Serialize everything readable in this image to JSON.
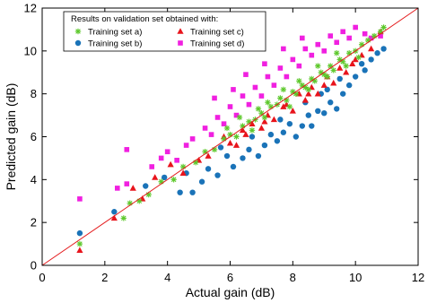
{
  "chart_data": {
    "type": "scatter",
    "xlabel": "Actual gain (dB)",
    "ylabel": "Predicted gain (dB)",
    "xlim": [
      0,
      12
    ],
    "ylim": [
      0,
      12
    ],
    "xticks": [
      "0",
      "2",
      "4",
      "6",
      "8",
      "10",
      "12"
    ],
    "yticks": [
      "0",
      "2",
      "4",
      "6",
      "8",
      "10",
      "12"
    ],
    "grid": false,
    "reference_line": {
      "from": [
        0,
        0
      ],
      "to": [
        12,
        12
      ],
      "color": "#e41a1c"
    },
    "legend": {
      "title": "Results on validation set obtained with:",
      "placement": "top-left",
      "entries": [
        {
          "label": "Training set a)",
          "marker": "asterisk",
          "color": "#5cc82a"
        },
        {
          "label": "Training set c)",
          "marker": "triangle",
          "color": "#e8141c"
        },
        {
          "label": "Training set b)",
          "marker": "circle",
          "color": "#1a73b8"
        },
        {
          "label": "Training set d)",
          "marker": "square",
          "color": "#f020e0"
        }
      ]
    },
    "series": [
      {
        "name": "Training set a)",
        "marker": "asterisk",
        "color": "#5cc82a",
        "points": [
          [
            1.2,
            1.0
          ],
          [
            2.6,
            2.2
          ],
          [
            2.8,
            2.9
          ],
          [
            3.1,
            3.0
          ],
          [
            3.4,
            3.3
          ],
          [
            3.8,
            3.9
          ],
          [
            4.2,
            4.0
          ],
          [
            4.5,
            4.6
          ],
          [
            4.9,
            4.8
          ],
          [
            5.2,
            5.3
          ],
          [
            5.5,
            5.4
          ],
          [
            5.8,
            5.9
          ],
          [
            6.0,
            6.1
          ],
          [
            6.2,
            6.0
          ],
          [
            6.4,
            6.5
          ],
          [
            6.6,
            6.7
          ],
          [
            6.8,
            6.8
          ],
          [
            7.0,
            7.1
          ],
          [
            7.1,
            6.9
          ],
          [
            7.3,
            7.4
          ],
          [
            7.5,
            7.5
          ],
          [
            7.6,
            7.8
          ],
          [
            7.8,
            7.7
          ],
          [
            8.0,
            8.1
          ],
          [
            8.1,
            8.0
          ],
          [
            8.3,
            8.4
          ],
          [
            8.4,
            8.3
          ],
          [
            8.6,
            8.7
          ],
          [
            8.7,
            8.6
          ],
          [
            8.9,
            9.0
          ],
          [
            9.0,
            8.9
          ],
          [
            9.2,
            9.3
          ],
          [
            9.3,
            9.1
          ],
          [
            9.5,
            9.6
          ],
          [
            9.6,
            9.5
          ],
          [
            9.8,
            9.9
          ],
          [
            10.0,
            10.0
          ],
          [
            10.2,
            10.3
          ],
          [
            10.4,
            10.5
          ],
          [
            10.6,
            10.7
          ],
          [
            10.8,
            10.9
          ],
          [
            10.9,
            11.1
          ],
          [
            7.2,
            7.6
          ],
          [
            7.7,
            8.2
          ],
          [
            8.2,
            8.6
          ],
          [
            8.8,
            9.3
          ],
          [
            9.4,
            9.9
          ],
          [
            6.9,
            7.3
          ],
          [
            6.3,
            6.9
          ],
          [
            5.9,
            6.4
          ],
          [
            8.5,
            8.2
          ],
          [
            9.1,
            8.8
          ],
          [
            9.7,
            9.3
          ],
          [
            10.1,
            9.7
          ],
          [
            7.9,
            7.4
          ],
          [
            6.7,
            6.3
          ]
        ]
      },
      {
        "name": "Training set b)",
        "marker": "circle",
        "color": "#1a73b8",
        "points": [
          [
            1.2,
            1.5
          ],
          [
            2.3,
            2.5
          ],
          [
            3.3,
            3.7
          ],
          [
            3.9,
            4.1
          ],
          [
            4.4,
            3.4
          ],
          [
            4.8,
            3.4
          ],
          [
            5.1,
            3.9
          ],
          [
            5.3,
            4.5
          ],
          [
            5.6,
            4.2
          ],
          [
            5.9,
            5.1
          ],
          [
            6.1,
            4.6
          ],
          [
            6.4,
            5.0
          ],
          [
            6.6,
            5.4
          ],
          [
            6.9,
            5.1
          ],
          [
            7.1,
            5.6
          ],
          [
            7.3,
            6.1
          ],
          [
            7.5,
            5.8
          ],
          [
            7.7,
            6.2
          ],
          [
            7.9,
            6.6
          ],
          [
            8.1,
            6.0
          ],
          [
            8.3,
            6.5
          ],
          [
            8.5,
            7.0
          ],
          [
            8.6,
            6.5
          ],
          [
            8.8,
            7.2
          ],
          [
            9.0,
            7.1
          ],
          [
            9.2,
            7.6
          ],
          [
            9.4,
            7.3
          ],
          [
            9.6,
            8.0
          ],
          [
            9.8,
            8.4
          ],
          [
            10.0,
            8.8
          ],
          [
            10.3,
            9.1
          ],
          [
            10.5,
            9.6
          ],
          [
            10.7,
            9.9
          ],
          [
            10.9,
            10.1
          ],
          [
            8.4,
            7.6
          ],
          [
            7.6,
            6.8
          ],
          [
            9.1,
            8.2
          ],
          [
            6.7,
            6.0
          ],
          [
            4.6,
            4.3
          ],
          [
            5.7,
            5.5
          ],
          [
            8.9,
            8.0
          ],
          [
            9.5,
            8.7
          ],
          [
            10.2,
            9.4
          ]
        ]
      },
      {
        "name": "Training set c)",
        "marker": "triangle",
        "color": "#e8141c",
        "points": [
          [
            1.2,
            0.7
          ],
          [
            2.3,
            2.2
          ],
          [
            2.9,
            3.6
          ],
          [
            3.2,
            3.1
          ],
          [
            3.6,
            4.1
          ],
          [
            4.1,
            4.7
          ],
          [
            4.5,
            4.3
          ],
          [
            5.0,
            4.9
          ],
          [
            5.3,
            5.1
          ],
          [
            5.8,
            6.0
          ],
          [
            6.2,
            5.6
          ],
          [
            6.4,
            6.3
          ],
          [
            6.7,
            6.6
          ],
          [
            7.0,
            6.4
          ],
          [
            7.2,
            7.0
          ],
          [
            7.4,
            6.8
          ],
          [
            7.7,
            7.4
          ],
          [
            8.0,
            7.2
          ],
          [
            8.2,
            8.0
          ],
          [
            8.4,
            7.7
          ],
          [
            8.6,
            8.3
          ],
          [
            8.8,
            8.0
          ],
          [
            9.1,
            8.8
          ],
          [
            9.3,
            8.5
          ],
          [
            9.5,
            9.2
          ],
          [
            9.7,
            9.0
          ],
          [
            10.0,
            9.6
          ],
          [
            10.2,
            9.8
          ],
          [
            10.5,
            10.1
          ],
          [
            10.8,
            10.9
          ],
          [
            7.1,
            6.7
          ],
          [
            7.8,
            7.5
          ],
          [
            8.5,
            8.0
          ],
          [
            9.0,
            8.4
          ],
          [
            9.9,
            9.4
          ],
          [
            6.5,
            6.1
          ],
          [
            6.0,
            5.7
          ]
        ]
      },
      {
        "name": "Training set d)",
        "marker": "square",
        "color": "#f020e0",
        "points": [
          [
            1.2,
            3.1
          ],
          [
            2.4,
            3.6
          ],
          [
            2.7,
            3.8
          ],
          [
            2.7,
            5.4
          ],
          [
            3.5,
            4.6
          ],
          [
            3.8,
            5.0
          ],
          [
            4.0,
            5.3
          ],
          [
            4.3,
            4.9
          ],
          [
            4.6,
            5.6
          ],
          [
            4.8,
            5.9
          ],
          [
            5.2,
            6.4
          ],
          [
            5.4,
            6.1
          ],
          [
            5.6,
            6.9
          ],
          [
            5.8,
            6.6
          ],
          [
            6.0,
            7.4
          ],
          [
            6.2,
            7.0
          ],
          [
            6.4,
            7.9
          ],
          [
            6.6,
            7.5
          ],
          [
            6.8,
            8.3
          ],
          [
            7.0,
            7.9
          ],
          [
            7.2,
            8.8
          ],
          [
            7.4,
            8.4
          ],
          [
            7.6,
            9.2
          ],
          [
            7.8,
            8.8
          ],
          [
            8.0,
            9.6
          ],
          [
            8.2,
            9.3
          ],
          [
            8.4,
            10.1
          ],
          [
            8.6,
            9.8
          ],
          [
            8.8,
            10.3
          ],
          [
            9.0,
            10.0
          ],
          [
            9.2,
            10.7
          ],
          [
            9.4,
            10.4
          ],
          [
            9.6,
            10.9
          ],
          [
            9.8,
            10.6
          ],
          [
            10.0,
            11.1
          ],
          [
            10.3,
            10.8
          ],
          [
            10.5,
            10.6
          ],
          [
            10.8,
            10.7
          ],
          [
            6.5,
            8.9
          ],
          [
            7.1,
            9.4
          ],
          [
            7.7,
            10.1
          ],
          [
            8.3,
            10.6
          ],
          [
            5.5,
            7.8
          ],
          [
            6.1,
            8.2
          ]
        ]
      }
    ]
  }
}
